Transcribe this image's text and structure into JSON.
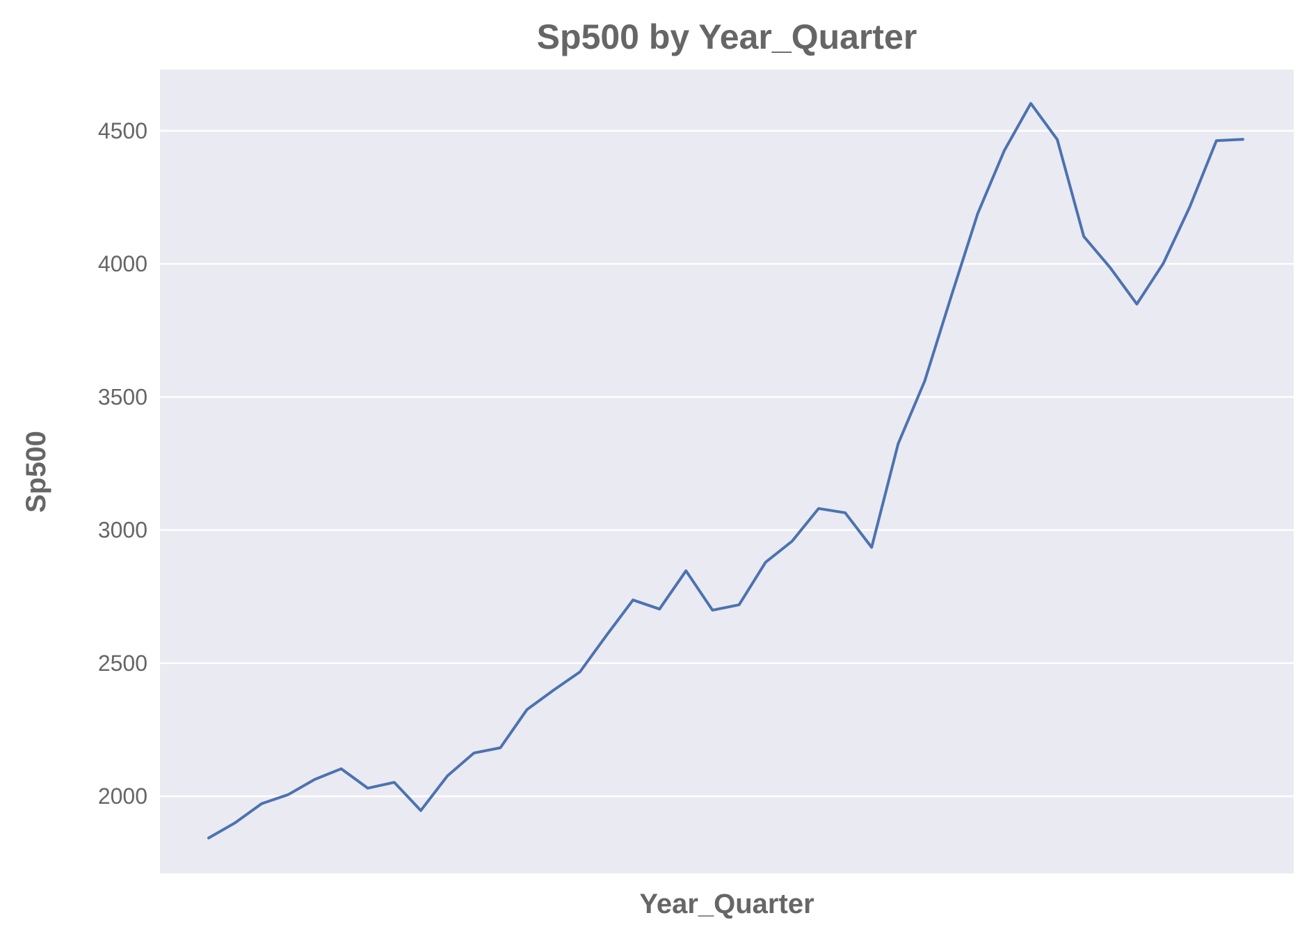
{
  "chart_data": {
    "type": "line",
    "title": "Sp500 by Year_Quarter",
    "xlabel": "Year_Quarter",
    "ylabel": "Sp500",
    "ylim": [
      1710,
      4730
    ],
    "yticks": [
      2000,
      2500,
      3000,
      3500,
      4000,
      4500
    ],
    "x_tick_labels_visible": false,
    "grid": true,
    "series": [
      {
        "color": "#4c72b0",
        "values": [
          1843,
          1900,
          1972,
          2006,
          2063,
          2103,
          2030,
          2052,
          1946,
          2076,
          2162,
          2182,
          2325,
          2398,
          2467,
          2604,
          2737,
          2703,
          2847,
          2699,
          2719,
          2879,
          2958,
          3081,
          3065,
          2935,
          3324,
          3560,
          3878,
          4189,
          4425,
          4603,
          4467,
          4103,
          3985,
          3849,
          4002,
          4215,
          4463,
          4468
        ]
      }
    ]
  },
  "style": {
    "plot_bg": "#eaeaf2",
    "grid_color": "#ffffff",
    "text_color": "#666666",
    "page_bg": "#ffffff"
  }
}
